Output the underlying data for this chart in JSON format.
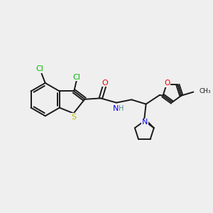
{
  "bg_color": "#efefef",
  "bond_color": "#1a1a1a",
  "colors": {
    "Cl": "#00bb00",
    "S": "#bbbb00",
    "N": "#0000ee",
    "O": "#ee0000",
    "C": "#1a1a1a"
  },
  "lw": 1.4,
  "fs": 8.0
}
